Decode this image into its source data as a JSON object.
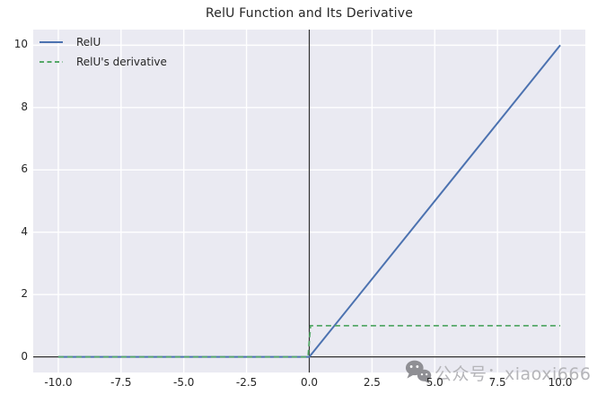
{
  "watermark": {
    "text": "公众号：xiaoxi666",
    "icon": "wechat",
    "text_color": "#b5b5b9",
    "icon_color": "#8f8f94"
  },
  "chart_data": {
    "type": "line",
    "title": "RelU Function and Its Derivative",
    "xlabel": "",
    "ylabel": "",
    "xlim": [
      -11,
      11
    ],
    "ylim": [
      -0.5,
      10.5
    ],
    "x_ticks": [
      -10.0,
      -7.5,
      -5.0,
      -2.5,
      0.0,
      2.5,
      5.0,
      7.5,
      10.0
    ],
    "x_tick_labels": [
      "-10.0",
      "-7.5",
      "-5.0",
      "-2.5",
      "0.0",
      "2.5",
      "5.0",
      "7.5",
      "10.0"
    ],
    "y_ticks": [
      0,
      2,
      4,
      6,
      8,
      10
    ],
    "y_tick_labels": [
      "0",
      "2",
      "4",
      "6",
      "8",
      "10"
    ],
    "grid": true,
    "grid_color": "#ffffff",
    "plot_background": "#eaeaf2",
    "axis_line_color": "#2e2e2e",
    "text_color": "#262626",
    "legend_position": "upper left",
    "axlines": {
      "vline_x": 0.0,
      "hline_y": 0.0
    },
    "series": [
      {
        "name": "RelU",
        "color": "#4c72b0",
        "style": "solid",
        "width": 2,
        "points": [
          [
            -10,
            0
          ],
          [
            0,
            0
          ],
          [
            10,
            10
          ]
        ]
      },
      {
        "name": "RelU's derivative",
        "color": "#55a868",
        "style": "dashed",
        "width": 1.8,
        "points": [
          [
            -10,
            0
          ],
          [
            -0.05,
            0
          ],
          [
            0.05,
            1
          ],
          [
            10,
            1
          ]
        ]
      }
    ]
  }
}
